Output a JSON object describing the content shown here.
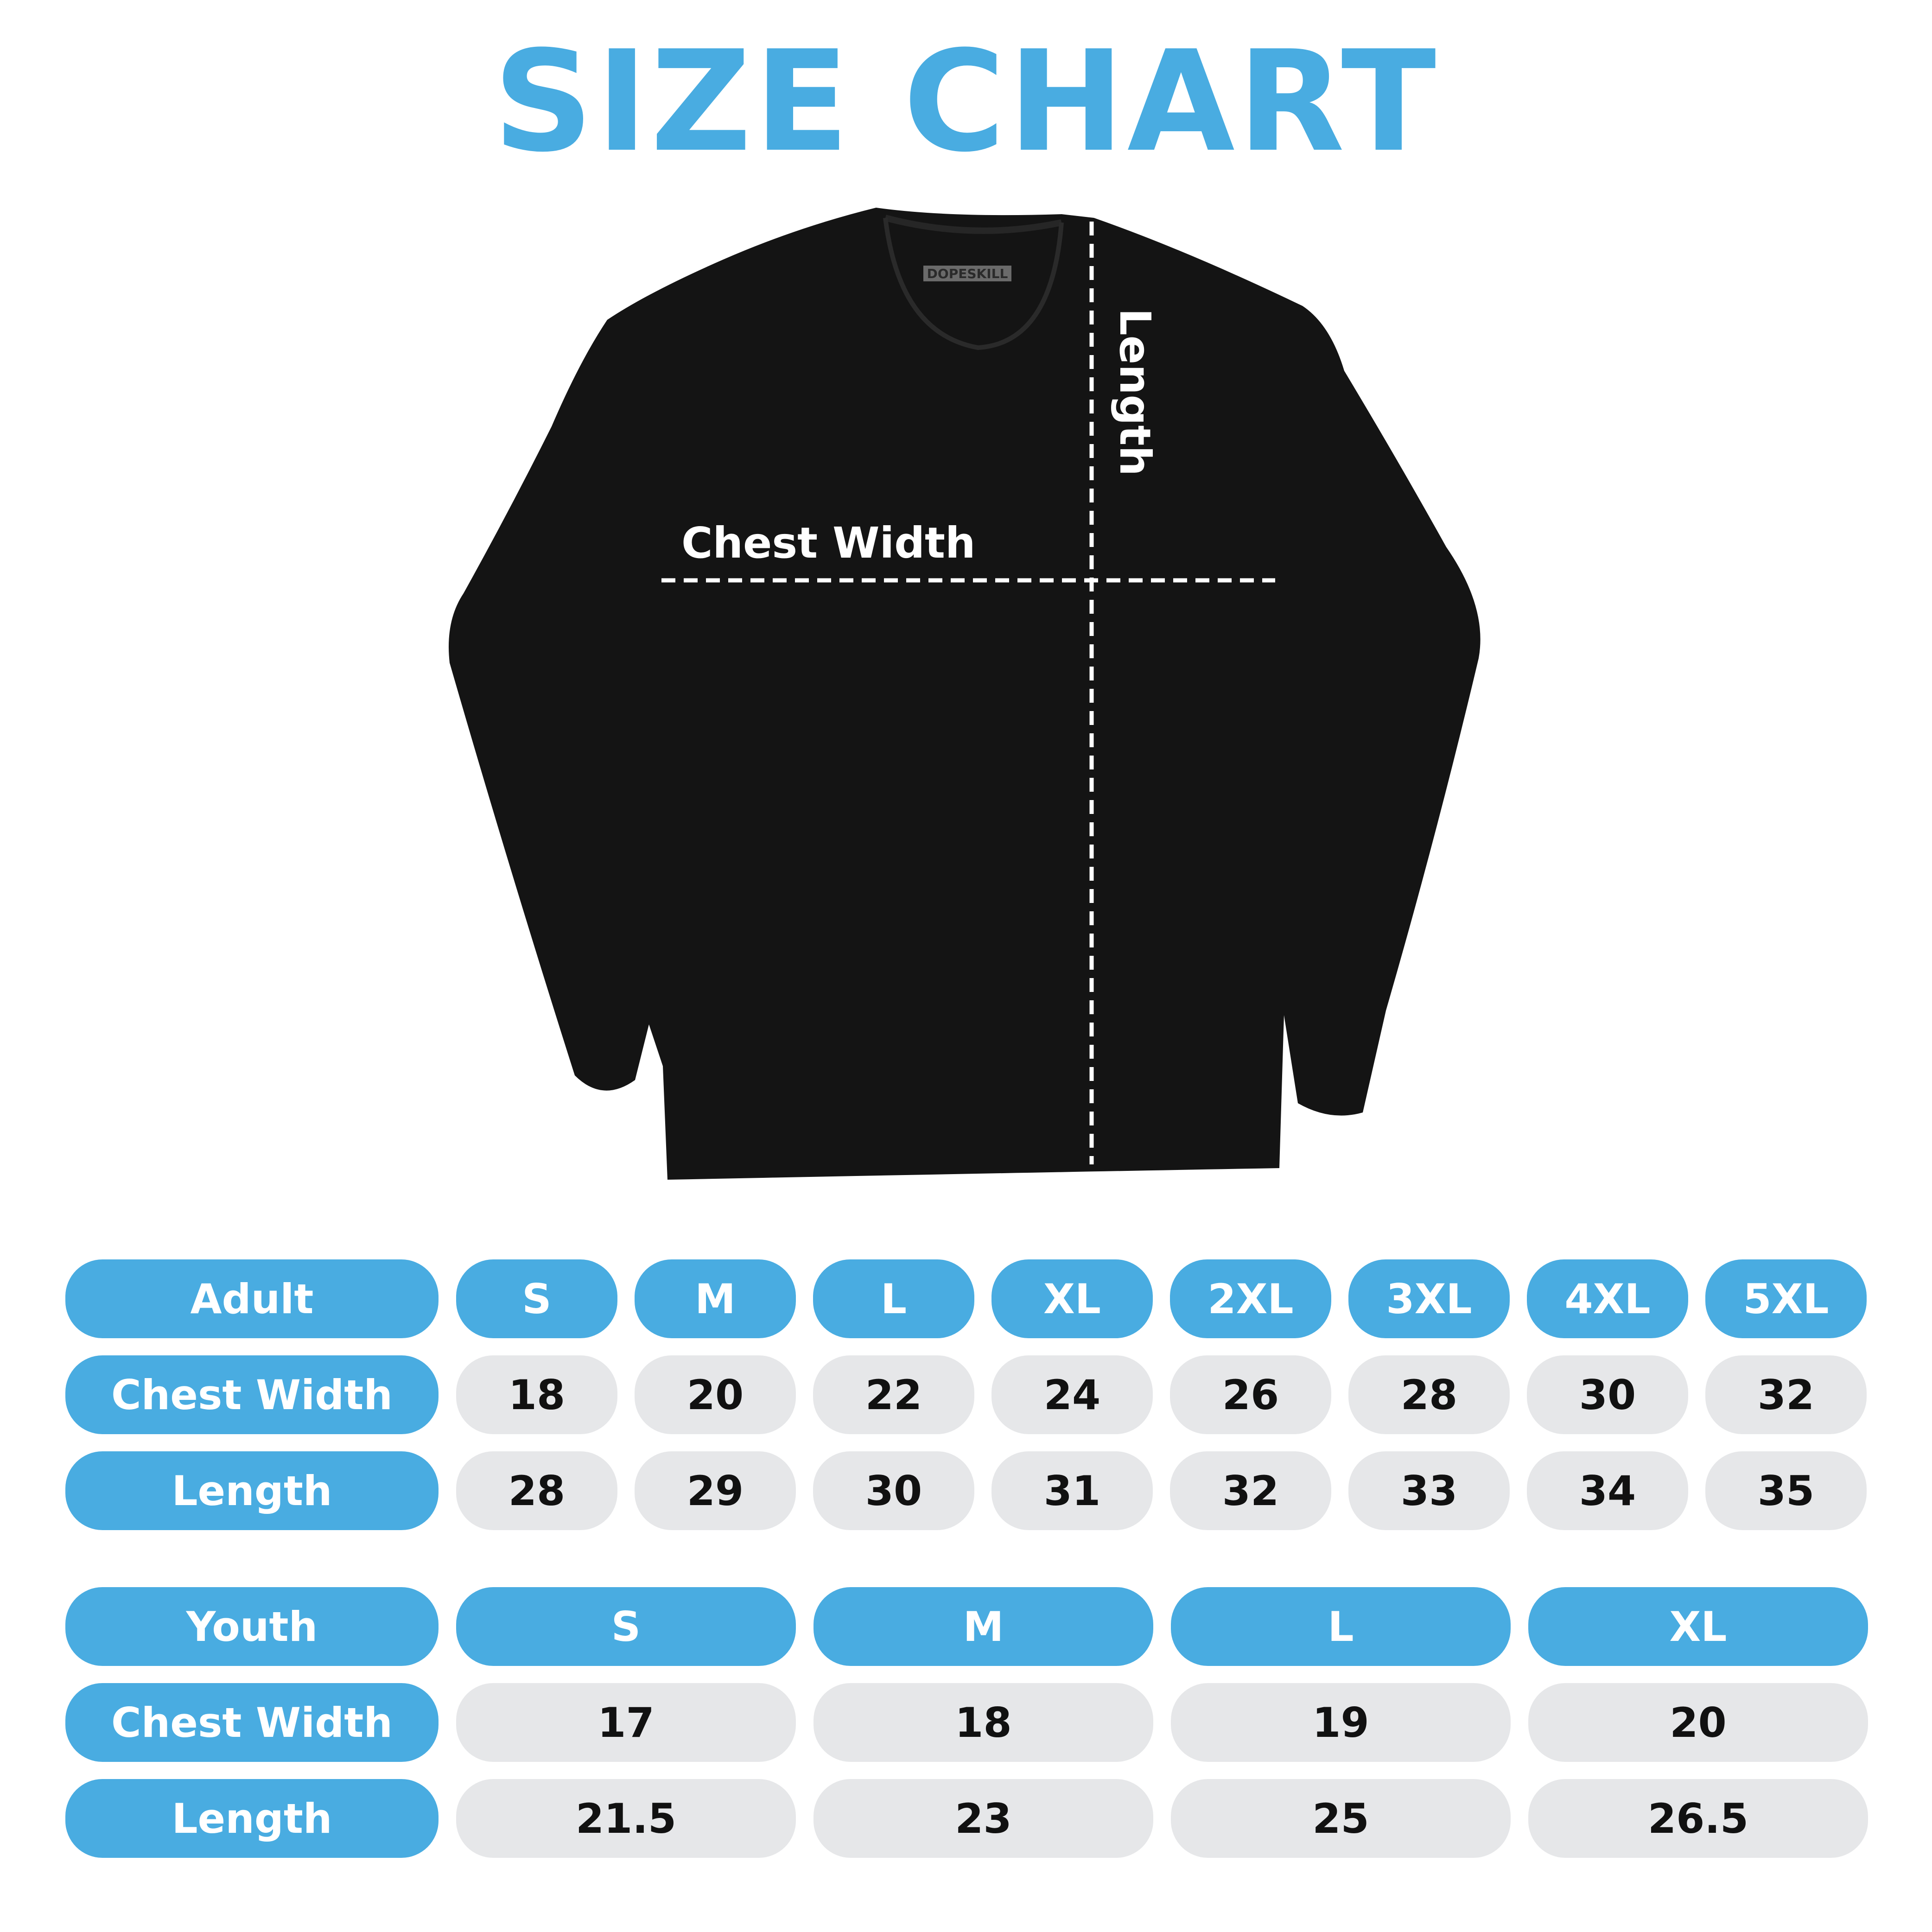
{
  "title": "SIZE CHART",
  "colors": {
    "accent": "#49ACE1",
    "cell_bg": "#E6E7E9",
    "shirt": "#141414"
  },
  "shirt": {
    "brand_tag": "DOPESKILL",
    "chest_label": "Chest Width",
    "length_label": "Length"
  },
  "adult": {
    "header": "Adult",
    "sizes": [
      "S",
      "M",
      "L",
      "XL",
      "2XL",
      "3XL",
      "4XL",
      "5XL"
    ],
    "rows": [
      {
        "label": "Chest Width",
        "values": [
          "18",
          "20",
          "22",
          "24",
          "26",
          "28",
          "30",
          "32"
        ]
      },
      {
        "label": "Length",
        "values": [
          "28",
          "29",
          "30",
          "31",
          "32",
          "33",
          "34",
          "35"
        ]
      }
    ]
  },
  "youth": {
    "header": "Youth",
    "sizes": [
      "S",
      "M",
      "L",
      "XL"
    ],
    "rows": [
      {
        "label": "Chest Width",
        "values": [
          "17",
          "18",
          "19",
          "20"
        ]
      },
      {
        "label": "Length",
        "values": [
          "21.5",
          "23",
          "25",
          "26.5"
        ]
      }
    ]
  }
}
